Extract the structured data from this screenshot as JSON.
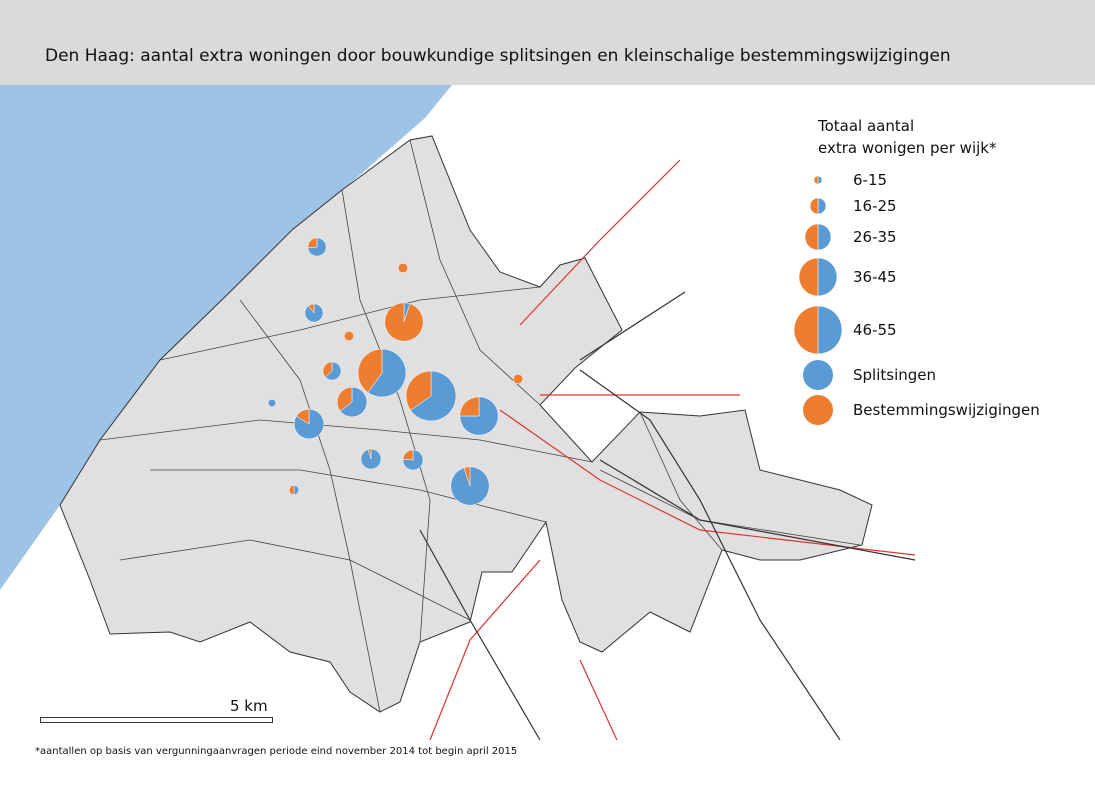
{
  "header": {
    "title": "Den Haag: aantal extra woningen door bouwkundige splitsingen en kleinschalige bestemmingswijzigingen"
  },
  "legend": {
    "title": [
      "Totaal aantal",
      "extra wonigen per wijk*"
    ],
    "size_classes": [
      "6-15",
      "16-25",
      "26-35",
      "36-45",
      "46-55"
    ],
    "entries": [
      {
        "name": "Splitsingen",
        "color": "#5b9bd5"
      },
      {
        "name": "Bestemmingswijzigingen",
        "color": "#ed7d31"
      }
    ]
  },
  "pies": [
    [
      14,
      5
    ],
    [
      0,
      10
    ],
    [
      17,
      2
    ],
    [
      0,
      10
    ],
    [
      2,
      38
    ],
    [
      30,
      20
    ],
    [
      12,
      7
    ],
    [
      8,
      0
    ],
    [
      34,
      18
    ],
    [
      20,
      11
    ],
    [
      26,
      5
    ],
    [
      30,
      10
    ],
    [
      0,
      10
    ],
    [
      20,
      1
    ],
    [
      16,
      5
    ],
    [
      5,
      5
    ],
    [
      38,
      2
    ]
  ],
  "scale_bar": {
    "label": "5 km"
  },
  "footnote": "*aantallen op basis van vergunningaanvragen periode eind november 2014 tot begin april 2015"
}
